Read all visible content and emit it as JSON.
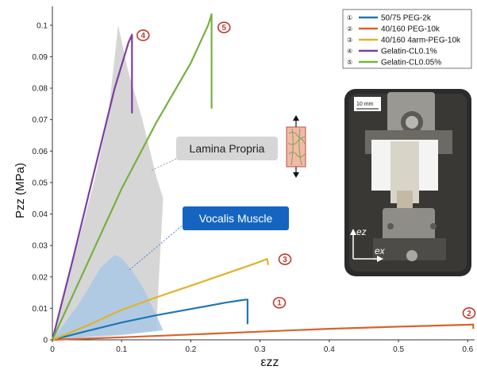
{
  "chart_data": {
    "type": "line",
    "xlabel": "εzz",
    "ylabel": "Pzz (MPa)",
    "xlim": [
      0,
      0.61
    ],
    "ylim": [
      0,
      0.106
    ],
    "x_ticks": [
      "0",
      "0.1",
      "0.2",
      "0.3",
      "0.4",
      "0.5",
      "0.6"
    ],
    "y_ticks": [
      "0",
      "0.01",
      "0.02",
      "0.03",
      "0.04",
      "0.05",
      "0.06",
      "0.07",
      "0.08",
      "0.09",
      "0.1"
    ],
    "legend_placement": "top-right",
    "legend": [
      {
        "num": "①",
        "label": "50/75  PEG-2k",
        "color": "#1f77b4"
      },
      {
        "num": "②",
        "label": "40/160 PEG-10k",
        "color": "#d9632b"
      },
      {
        "num": "③",
        "label": "40/160 4arm-PEG-10k",
        "color": "#e0b32a"
      },
      {
        "num": "④",
        "label": "Gelatin-CL0.1%",
        "color": "#7b3fa0"
      },
      {
        "num": "⑤",
        "label": "Gelatin-CL0.05%",
        "color": "#76b041"
      }
    ],
    "series": [
      {
        "name": "50/75  PEG-2k",
        "color": "#1f77b4",
        "x": [
          0,
          0.05,
          0.1,
          0.15,
          0.2,
          0.25,
          0.27,
          0.28,
          0.282,
          0.282
        ],
        "y": [
          0,
          0.0028,
          0.0055,
          0.0078,
          0.0098,
          0.0118,
          0.0125,
          0.0128,
          0.0128,
          0.005
        ]
      },
      {
        "name": "40/160 PEG-10k",
        "color": "#d9632b",
        "x": [
          0,
          0.1,
          0.2,
          0.3,
          0.4,
          0.5,
          0.6,
          0.608,
          0.608
        ],
        "y": [
          0,
          0.0008,
          0.0017,
          0.0026,
          0.0035,
          0.0042,
          0.0048,
          0.0049,
          0.0035
        ]
      },
      {
        "name": "40/160 4arm-PEG-10k",
        "color": "#e0b32a",
        "x": [
          0,
          0.05,
          0.1,
          0.15,
          0.2,
          0.25,
          0.3,
          0.31,
          0.312
        ],
        "y": [
          0,
          0.0045,
          0.0095,
          0.0135,
          0.0172,
          0.021,
          0.0248,
          0.0257,
          0.0238
        ]
      },
      {
        "name": "Gelatin-CL0.1%",
        "color": "#7b3fa0",
        "x": [
          0,
          0.03,
          0.06,
          0.09,
          0.11,
          0.115,
          0.115
        ],
        "y": [
          0,
          0.026,
          0.053,
          0.08,
          0.0945,
          0.097,
          0.072
        ]
      },
      {
        "name": "Gelatin-CL0.05%",
        "color": "#76b041",
        "x": [
          0,
          0.05,
          0.1,
          0.15,
          0.2,
          0.225,
          0.23,
          0.23
        ],
        "y": [
          0,
          0.024,
          0.048,
          0.069,
          0.088,
          0.1,
          0.1035,
          0.0735
        ]
      }
    ],
    "bands": [
      {
        "label": "Lamina Propria",
        "color": "#c8c8c8",
        "upper": {
          "x": [
            0,
            0.03,
            0.06,
            0.08,
            0.095,
            0.11,
            0.13,
            0.15,
            0.16
          ],
          "y": [
            0,
            0.025,
            0.05,
            0.07,
            0.1,
            0.085,
            0.07,
            0.052,
            0.045
          ]
        },
        "lower": {
          "x": [
            0,
            0.05,
            0.1,
            0.15,
            0.16
          ],
          "y": [
            0,
            0.001,
            0.002,
            0.003,
            0.045
          ]
        }
      },
      {
        "label": "Vocalis Muscle",
        "color": "#a9c8e6",
        "upper": {
          "x": [
            0,
            0.04,
            0.07,
            0.09,
            0.1,
            0.115,
            0.13,
            0.15,
            0.16
          ],
          "y": [
            0,
            0.012,
            0.023,
            0.027,
            0.026,
            0.022,
            0.017,
            0.008,
            0.003
          ]
        },
        "lower": {
          "x": [
            0,
            0.05,
            0.1,
            0.16
          ],
          "y": [
            0,
            0.0008,
            0.0015,
            0.003
          ]
        }
      }
    ],
    "annotations": [
      {
        "text": "1",
        "x": 0.328,
        "y": 0.0118
      },
      {
        "text": "2",
        "x": 0.602,
        "y": 0.0085
      },
      {
        "text": "3",
        "x": 0.336,
        "y": 0.0256
      },
      {
        "text": "4",
        "x": 0.131,
        "y": 0.0968
      },
      {
        "text": "5",
        "x": 0.248,
        "y": 0.0993
      }
    ]
  },
  "callouts": {
    "lamina_propria": "Lamina Propria",
    "vocalis_muscle": "Vocalis Muscle"
  },
  "photo": {
    "scale_label": "10 mm",
    "axis_z": "ez",
    "axis_x": "ex"
  }
}
